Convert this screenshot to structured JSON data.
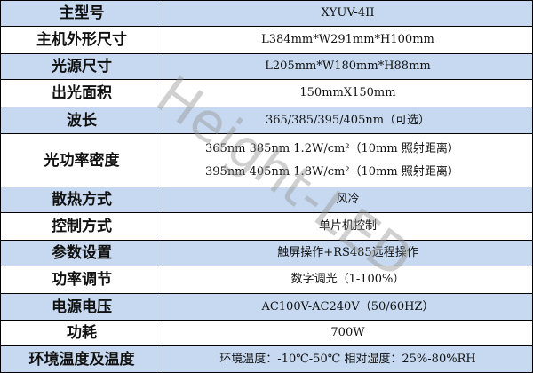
{
  "watermark": "Height-LED",
  "rows": [
    {
      "label": "主型号",
      "value": "XYUV-4II"
    },
    {
      "label": "主机外形尺寸",
      "value": "L384mm*W291mm*H100mm"
    },
    {
      "label": "光源尺寸",
      "value": "L205mm*W180mm*H88mm"
    },
    {
      "label": "出光面积",
      "value": "150mmX150mm"
    },
    {
      "label": "波长",
      "value": "365/385/395/405nm（可选）"
    },
    {
      "label": "光功率密度",
      "lines": [
        "365nm 385nm  1.2W/cm²（10mm 照射距离）",
        "395nm 405nm  1.8W/cm²（10mm 照射距离）"
      ]
    },
    {
      "label": "散热方式",
      "value": "风冷"
    },
    {
      "label": "控制方式",
      "value": "单片机控制"
    },
    {
      "label": "参数设置",
      "value": "触屏操作+RS485远程操作"
    },
    {
      "label": "功率调节",
      "value": "数字调光（1-100%）"
    },
    {
      "label": "电源电压",
      "value": "AC100V-AC240V（50/60HZ）"
    },
    {
      "label": "功耗",
      "value": "700W"
    },
    {
      "label": "环境温度及温度",
      "value": "环境温度：-10℃-50℃ 相对湿度：25%-80%RH"
    }
  ],
  "colors": {
    "shaded_row": "#c6d9f0",
    "border": "#000000"
  }
}
